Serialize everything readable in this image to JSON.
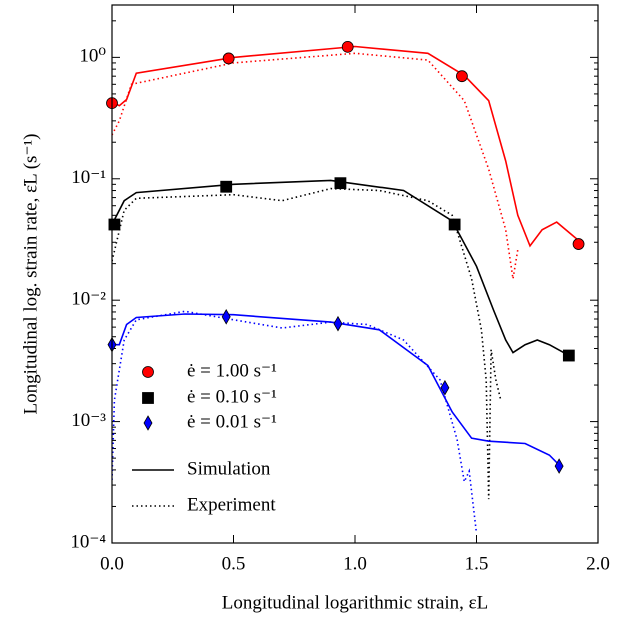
{
  "chart_data": {
    "type": "line",
    "x_label": "Longitudinal logarithmic strain, εL",
    "y_label": "Longitudinal log. strain rate, ε̇L (s⁻¹)",
    "log_y": true,
    "xlim": [
      0,
      2
    ],
    "ylim": [
      0.0001,
      2.7
    ],
    "xticks": [
      {
        "value": 0,
        "label": "0.0"
      },
      0.5,
      {
        "value": 1,
        "label": "1.0"
      },
      1.5,
      {
        "value": 2,
        "label": "2.0"
      }
    ],
    "yticks": [
      {
        "value": 0.0001,
        "label": "10⁻⁴"
      },
      {
        "value": 0.001,
        "label": "10⁻³"
      },
      {
        "value": 0.01,
        "label": "10⁻²"
      },
      {
        "value": 0.1,
        "label": "10⁻¹"
      },
      {
        "value": 1,
        "label": "10⁰"
      }
    ],
    "legend": "lower left",
    "series": [
      {
        "name": "ė = 1.00 s⁻¹",
        "color": "#ff0000",
        "marker": "circle",
        "markers": {
          "x": [
            0.0,
            0.48,
            0.97,
            1.44,
            1.92
          ],
          "values": [
            0.42,
            0.98,
            1.22,
            0.7,
            0.029
          ]
        },
        "simulation": {
          "x": [
            0.0,
            0.03,
            0.06,
            0.1,
            0.5,
            1.0,
            1.3,
            1.45,
            1.55,
            1.62,
            1.67,
            1.72,
            1.77,
            1.83,
            1.92
          ],
          "values": [
            0.43,
            0.4,
            0.45,
            0.74,
            1.0,
            1.23,
            1.08,
            0.71,
            0.44,
            0.14,
            0.05,
            0.028,
            0.038,
            0.044,
            0.031
          ]
        },
        "experiment": {
          "x": [
            0.0,
            0.03,
            0.08,
            0.5,
            1.0,
            1.3,
            1.45,
            1.55,
            1.62,
            1.65,
            1.67
          ],
          "values": [
            0.23,
            0.3,
            0.6,
            0.9,
            1.08,
            0.95,
            0.44,
            0.12,
            0.038,
            0.015,
            0.026
          ]
        }
      },
      {
        "name": "ė = 0.10 s⁻¹",
        "color": "#000000",
        "marker": "square",
        "markers": {
          "x": [
            0.01,
            0.47,
            0.94,
            1.41,
            1.88
          ],
          "values": [
            0.042,
            0.086,
            0.092,
            0.042,
            0.0035
          ]
        },
        "simulation": {
          "x": [
            0.0,
            0.05,
            0.1,
            0.5,
            0.9,
            1.2,
            1.4,
            1.5,
            1.57,
            1.62,
            1.65,
            1.7,
            1.75,
            1.8,
            1.87
          ],
          "values": [
            0.042,
            0.066,
            0.077,
            0.09,
            0.097,
            0.08,
            0.045,
            0.019,
            0.0083,
            0.0047,
            0.0037,
            0.0043,
            0.0047,
            0.0043,
            0.0036
          ]
        },
        "experiment": {
          "x": [
            0.0,
            0.05,
            0.1,
            0.5,
            0.7,
            0.9,
            1.1,
            1.3,
            1.4,
            1.48,
            1.52,
            1.54,
            1.55,
            1.56,
            1.58,
            1.6
          ],
          "values": [
            0.021,
            0.055,
            0.069,
            0.074,
            0.066,
            0.083,
            0.08,
            0.066,
            0.05,
            0.015,
            0.0057,
            0.0022,
            0.00023,
            0.0039,
            0.0022,
            0.0015
          ]
        }
      },
      {
        "name": "ė = 0.01 s⁻¹",
        "color": "#0000ff",
        "marker": "diamond",
        "markers": {
          "x": [
            0.0,
            0.47,
            0.93,
            1.37,
            1.84
          ],
          "values": [
            0.0043,
            0.0073,
            0.0064,
            0.0019,
            0.00043
          ]
        },
        "simulation": {
          "x": [
            0.0,
            0.03,
            0.06,
            0.1,
            0.3,
            0.5,
            0.9,
            1.1,
            1.3,
            1.4,
            1.48,
            1.55,
            1.7,
            1.8,
            1.84
          ],
          "values": [
            0.0043,
            0.0043,
            0.0063,
            0.0072,
            0.0077,
            0.0076,
            0.0066,
            0.0057,
            0.0029,
            0.0012,
            0.00073,
            0.00069,
            0.00066,
            0.00053,
            0.00044
          ]
        },
        "experiment": {
          "x": [
            0.0,
            0.01,
            0.05,
            0.1,
            0.3,
            0.5,
            0.7,
            0.9,
            1.05,
            1.2,
            1.35,
            1.42,
            1.45,
            1.47,
            1.5
          ],
          "values": [
            0.00033,
            0.0015,
            0.0047,
            0.0069,
            0.0081,
            0.0069,
            0.0059,
            0.0066,
            0.0063,
            0.0047,
            0.0022,
            0.00071,
            0.00032,
            0.00039,
            0.00012
          ]
        }
      }
    ],
    "line_styles": [
      {
        "name": "Simulation",
        "dash": "solid"
      },
      {
        "name": "Experiment",
        "dash": "dotted"
      }
    ]
  }
}
